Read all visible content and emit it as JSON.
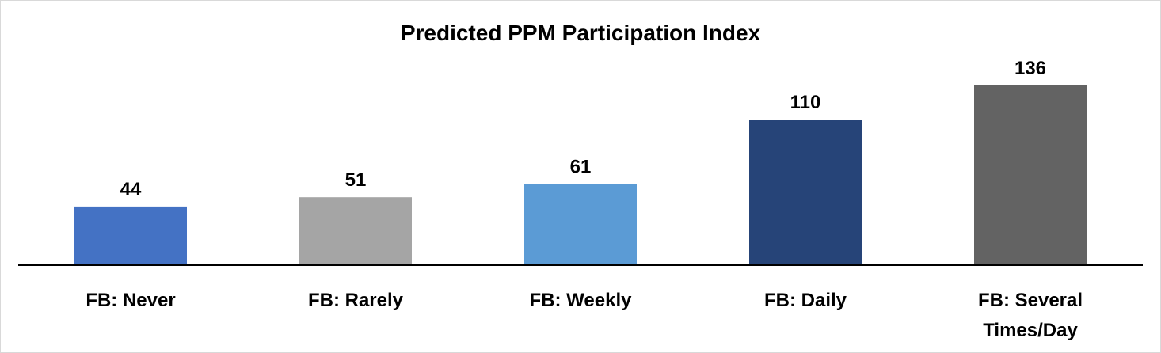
{
  "chart_data": {
    "type": "bar",
    "title": "Predicted PPM Participation Index",
    "xlabel": "",
    "ylabel": "",
    "categories": [
      "FB: Never",
      "FB: Rarely",
      "FB: Weekly",
      "FB: Daily",
      "FB: Several Times/Day"
    ],
    "category_lines": [
      [
        "FB: Never"
      ],
      [
        "FB: Rarely"
      ],
      [
        "FB: Weekly"
      ],
      [
        "FB: Daily"
      ],
      [
        "FB: Several",
        "Times/Day"
      ]
    ],
    "values": [
      44,
      51,
      61,
      110,
      136
    ],
    "value_labels": [
      "44",
      "51",
      "61",
      "110",
      "136"
    ],
    "colors": [
      "#4472c4",
      "#a5a5a5",
      "#5b9bd5",
      "#264478",
      "#636363"
    ],
    "ylim": [
      0,
      150
    ],
    "grid": false,
    "legend": "none"
  }
}
